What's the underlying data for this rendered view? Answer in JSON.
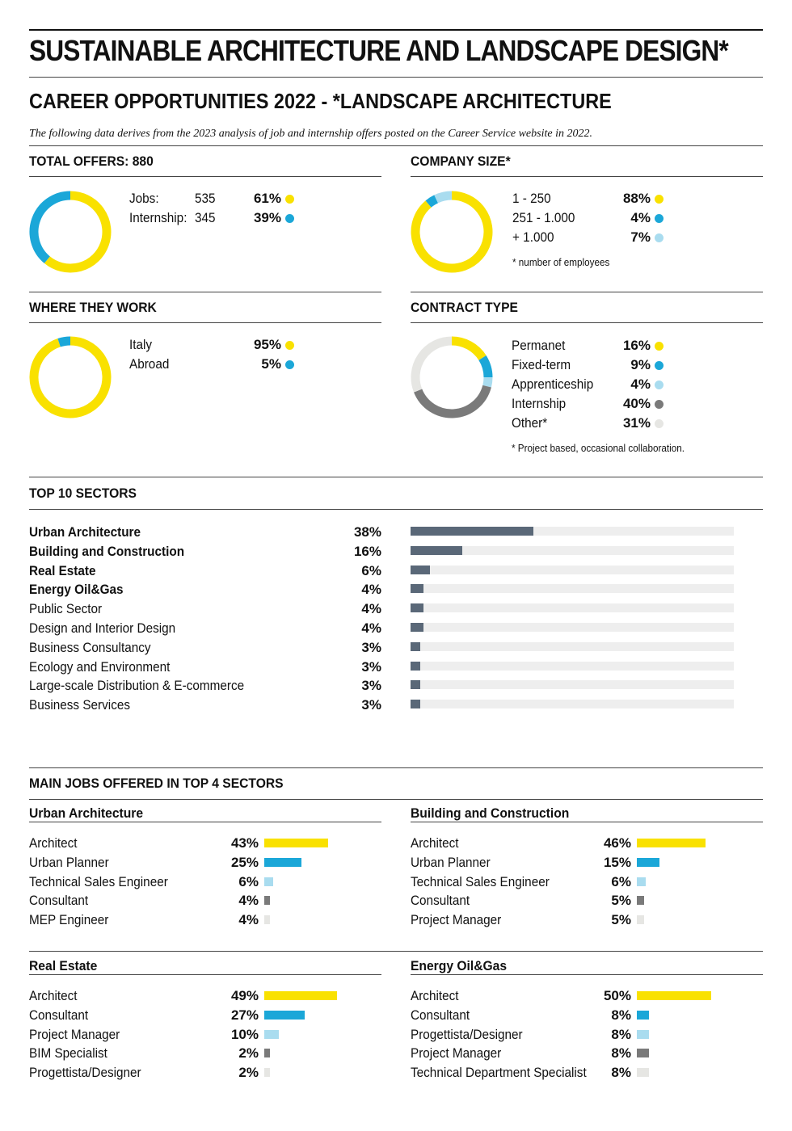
{
  "title": "SUSTAINABLE ARCHITECTURE AND LANDSCAPE DESIGN*",
  "subtitle": "CAREER OPPORTUNITIES 2022 - *LANDSCAPE ARCHITECTURE",
  "intro": "The  following data derives from the 2023 analysis of job and internship offers posted on the Career Service website in 2022.",
  "colors": {
    "yellow": "#f9e100",
    "blue": "#1ba7d8",
    "light_blue": "#a9dcef",
    "dark_gray": "#7a7a7a",
    "light_gray": "#e6e6e3",
    "sector_bar": "#5a6878",
    "track": "#eeeeee"
  },
  "chart_data": [
    {
      "type": "pie",
      "title": "TOTAL OFFERS: 880",
      "labels": [
        "Jobs:",
        "Internship:"
      ],
      "counts": [
        "535",
        "345"
      ],
      "values": [
        61,
        39
      ],
      "value_labels": [
        "61%",
        "39%"
      ],
      "colors": [
        "#f9e100",
        "#1ba7d8"
      ]
    },
    {
      "type": "pie",
      "title": "COMPANY SIZE*",
      "labels": [
        "1 - 250",
        "251 - 1.000",
        "+ 1.000"
      ],
      "values": [
        88,
        4,
        7
      ],
      "value_labels": [
        "88%",
        "4%",
        "7%"
      ],
      "colors": [
        "#f9e100",
        "#1ba7d8",
        "#a9dcef"
      ],
      "note": "* number of employees"
    },
    {
      "type": "pie",
      "title": "WHERE THEY WORK",
      "labels": [
        "Italy",
        "Abroad"
      ],
      "values": [
        95,
        5
      ],
      "value_labels": [
        "95%",
        "5%"
      ],
      "colors": [
        "#f9e100",
        "#1ba7d8"
      ]
    },
    {
      "type": "pie",
      "title": "CONTRACT TYPE",
      "labels": [
        "Permanet",
        "Fixed-term",
        "Apprenticeship",
        "Internship",
        "Other*"
      ],
      "values": [
        16,
        9,
        4,
        40,
        31
      ],
      "value_labels": [
        "16%",
        "9%",
        "4%",
        "40%",
        "31%"
      ],
      "colors": [
        "#f9e100",
        "#1ba7d8",
        "#a9dcef",
        "#7a7a7a",
        "#e6e6e3"
      ],
      "note": "* Project based, occasional collaboration."
    },
    {
      "type": "bar",
      "title": "TOP 10 SECTORS",
      "categories": [
        "Urban Architecture",
        "Building and Construction",
        "Real Estate",
        "Energy Oil&Gas",
        "Public Sector",
        "Design and Interior Design",
        "Business Consultancy",
        "Ecology and Environment",
        "Large-scale Distribution & E-commerce",
        "Business Services"
      ],
      "values": [
        38,
        16,
        6,
        4,
        4,
        4,
        3,
        3,
        3,
        3
      ],
      "value_labels": [
        "38%",
        "16%",
        "6%",
        "4%",
        "4%",
        "4%",
        "3%",
        "3%",
        "3%",
        "3%"
      ],
      "bold_count": 4,
      "ylim": [
        0,
        100
      ]
    },
    {
      "type": "bar",
      "section": "MAIN JOBS OFFERED IN TOP 4 SECTORS",
      "title": "Urban Architecture",
      "categories": [
        "Architect",
        "Urban Planner",
        "Technical Sales Engineer",
        "Consultant",
        "MEP Engineer"
      ],
      "values": [
        43,
        25,
        6,
        4,
        4
      ],
      "value_labels": [
        "43%",
        "25%",
        "6%",
        "4%",
        "4%"
      ],
      "colors": [
        "#f9e100",
        "#1ba7d8",
        "#a9dcef",
        "#7a7a7a",
        "#e6e6e3"
      ]
    },
    {
      "type": "bar",
      "title": "Building and Construction",
      "categories": [
        "Architect",
        "Urban Planner",
        "Technical Sales Engineer",
        "Consultant",
        "Project Manager"
      ],
      "values": [
        46,
        15,
        6,
        5,
        5
      ],
      "value_labels": [
        "46%",
        "15%",
        "6%",
        "5%",
        "5%"
      ],
      "colors": [
        "#f9e100",
        "#1ba7d8",
        "#a9dcef",
        "#7a7a7a",
        "#e6e6e3"
      ]
    },
    {
      "type": "bar",
      "title": "Real Estate",
      "categories": [
        "Architect",
        "Consultant",
        "Project Manager",
        "BIM Specialist",
        "Progettista/Designer"
      ],
      "values": [
        49,
        27,
        10,
        2,
        2
      ],
      "value_labels": [
        "49%",
        "27%",
        "10%",
        "2%",
        "2%"
      ],
      "colors": [
        "#f9e100",
        "#1ba7d8",
        "#a9dcef",
        "#7a7a7a",
        "#e6e6e3"
      ]
    },
    {
      "type": "bar",
      "title": "Energy Oil&Gas",
      "categories": [
        "Architect",
        "Consultant",
        "Progettista/Designer",
        "Project Manager",
        "Technical Department Specialist"
      ],
      "values": [
        50,
        8,
        8,
        8,
        8
      ],
      "value_labels": [
        "50%",
        "8%",
        "8%",
        "8%",
        "8%"
      ],
      "colors": [
        "#f9e100",
        "#1ba7d8",
        "#a9dcef",
        "#7a7a7a",
        "#e6e6e3"
      ]
    }
  ]
}
